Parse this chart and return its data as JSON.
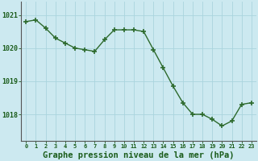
{
  "x": [
    0,
    1,
    2,
    3,
    4,
    5,
    6,
    7,
    8,
    9,
    10,
    11,
    12,
    13,
    14,
    15,
    16,
    17,
    18,
    19,
    20,
    21,
    22,
    23
  ],
  "y": [
    1020.8,
    1020.85,
    1020.6,
    1020.3,
    1020.15,
    1020.0,
    1019.95,
    1019.9,
    1020.25,
    1020.55,
    1020.55,
    1020.55,
    1020.5,
    1019.95,
    1019.4,
    1018.85,
    1018.35,
    1018.0,
    1018.0,
    1017.85,
    1017.65,
    1017.8,
    1018.3,
    1018.35
  ],
  "line_color": "#2d6a2d",
  "marker": "+",
  "marker_color": "#2d6a2d",
  "marker_size": 4,
  "line_width": 1.0,
  "bg_color": "#cce9f0",
  "grid_color": "#aad4de",
  "axis_label_color": "#1a5c1a",
  "tick_color": "#1a5c1a",
  "xlabel": "Graphe pression niveau de la mer (hPa)",
  "xlabel_fontsize": 7.5,
  "yticks": [
    1018,
    1019,
    1020,
    1021
  ],
  "ylim": [
    1017.2,
    1021.4
  ],
  "xlim": [
    -0.5,
    23.5
  ],
  "xticks": [
    0,
    1,
    2,
    3,
    4,
    5,
    6,
    7,
    8,
    9,
    10,
    11,
    12,
    13,
    14,
    15,
    16,
    17,
    18,
    19,
    20,
    21,
    22,
    23
  ]
}
